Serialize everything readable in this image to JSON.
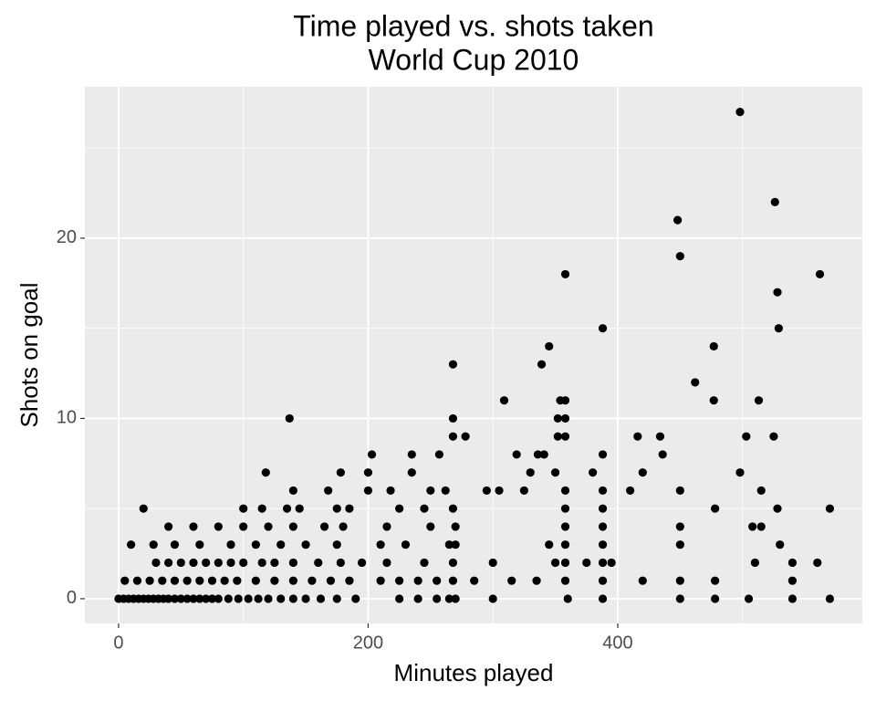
{
  "chart_data": {
    "type": "scatter",
    "title": "Time played vs. shots taken",
    "subtitle": "World Cup 2010",
    "xlabel": "Minutes played",
    "ylabel": "Shots on goal",
    "color": "#000000",
    "grid": true,
    "xlim": [
      -27,
      596
    ],
    "ylim": [
      -1.37,
      28.4
    ],
    "xticks": [
      0,
      200,
      400
    ],
    "yticks": [
      0,
      10,
      20
    ],
    "x_minor_grid": [
      100,
      300,
      500
    ],
    "y_minor_grid": [
      5,
      15,
      25
    ],
    "x": [
      0,
      4,
      8,
      12,
      16,
      20,
      24,
      28,
      32,
      36,
      40,
      45,
      50,
      55,
      60,
      65,
      70,
      75,
      80,
      88,
      96,
      104,
      112,
      120,
      130,
      140,
      150,
      162,
      175,
      190,
      225,
      240,
      255,
      265,
      270,
      300,
      360,
      388,
      450,
      478,
      505,
      540,
      570,
      5,
      15,
      25,
      35,
      45,
      55,
      65,
      75,
      85,
      95,
      110,
      125,
      140,
      155,
      170,
      185,
      210,
      225,
      240,
      255,
      268,
      285,
      315,
      335,
      358,
      388,
      420,
      450,
      478,
      540,
      30,
      40,
      50,
      60,
      70,
      80,
      90,
      100,
      115,
      125,
      140,
      160,
      178,
      195,
      215,
      245,
      268,
      300,
      350,
      358,
      375,
      388,
      395,
      510,
      540,
      560,
      10,
      28,
      45,
      65,
      90,
      110,
      130,
      150,
      175,
      210,
      230,
      265,
      270,
      345,
      358,
      388,
      450,
      530,
      40,
      60,
      80,
      100,
      120,
      140,
      165,
      180,
      215,
      250,
      270,
      358,
      388,
      450,
      508,
      515,
      20,
      100,
      115,
      135,
      145,
      175,
      185,
      225,
      245,
      268,
      358,
      388,
      478,
      528,
      570,
      140,
      168,
      200,
      218,
      250,
      262,
      295,
      305,
      325,
      358,
      388,
      410,
      450,
      515,
      118,
      178,
      200,
      235,
      330,
      350,
      380,
      420,
      498,
      203,
      235,
      257,
      319,
      336,
      341,
      388,
      436,
      268,
      278,
      352,
      358,
      416,
      434,
      503,
      525,
      137,
      268,
      352,
      358,
      309,
      354,
      358,
      477,
      513,
      462,
      268,
      339,
      345,
      477,
      388,
      529,
      528,
      358,
      562,
      450,
      448,
      526,
      498
    ],
    "values": [
      0,
      0,
      0,
      0,
      0,
      0,
      0,
      0,
      0,
      0,
      0,
      0,
      0,
      0,
      0,
      0,
      0,
      0,
      0,
      0,
      0,
      0,
      0,
      0,
      0,
      0,
      0,
      0,
      0,
      0,
      0,
      0,
      0,
      0,
      0,
      0,
      0,
      0,
      0,
      0,
      0,
      0,
      0,
      1,
      1,
      1,
      1,
      1,
      1,
      1,
      1,
      1,
      1,
      1,
      1,
      1,
      1,
      1,
      1,
      1,
      1,
      1,
      1,
      1,
      1,
      1,
      1,
      1,
      1,
      1,
      1,
      1,
      1,
      2,
      2,
      2,
      2,
      2,
      2,
      2,
      2,
      2,
      2,
      2,
      2,
      2,
      2,
      2,
      2,
      2,
      2,
      2,
      2,
      2,
      2,
      2,
      2,
      2,
      2,
      3,
      3,
      3,
      3,
      3,
      3,
      3,
      3,
      3,
      3,
      3,
      3,
      3,
      3,
      3,
      3,
      3,
      3,
      4,
      4,
      4,
      4,
      4,
      4,
      4,
      4,
      4,
      4,
      4,
      4,
      4,
      4,
      4,
      4,
      5,
      5,
      5,
      5,
      5,
      5,
      5,
      5,
      5,
      5,
      5,
      5,
      5,
      5,
      5,
      6,
      6,
      6,
      6,
      6,
      6,
      6,
      6,
      6,
      6,
      6,
      6,
      6,
      6,
      7,
      7,
      7,
      7,
      7,
      7,
      7,
      7,
      7,
      8,
      8,
      8,
      8,
      8,
      8,
      8,
      8,
      9,
      9,
      9,
      9,
      9,
      9,
      9,
      9,
      10,
      10,
      10,
      10,
      11,
      11,
      11,
      11,
      11,
      12,
      13,
      13,
      14,
      14,
      15,
      15,
      17,
      18,
      18,
      19,
      21,
      22,
      27
    ]
  }
}
